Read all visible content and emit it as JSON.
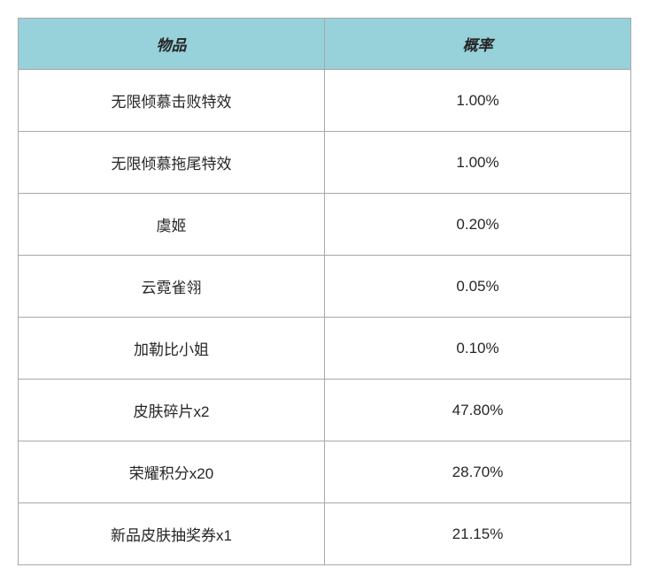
{
  "table": {
    "type": "table",
    "columns": [
      {
        "key": "item",
        "label": "物品",
        "width": "50%",
        "align": "center"
      },
      {
        "key": "rate",
        "label": "概率",
        "width": "50%",
        "align": "center"
      }
    ],
    "rows": [
      {
        "item": "无限倾慕击败特效",
        "rate": "1.00%"
      },
      {
        "item": "无限倾慕拖尾特效",
        "rate": "1.00%"
      },
      {
        "item": "虞姬",
        "rate": "0.20%"
      },
      {
        "item": "云霓雀翎",
        "rate": "0.05%"
      },
      {
        "item": "加勒比小姐",
        "rate": "0.10%"
      },
      {
        "item": "皮肤碎片x2",
        "rate": "47.80%"
      },
      {
        "item": "荣耀积分x20",
        "rate": "28.70%"
      },
      {
        "item": "新品皮肤抽奖券x1",
        "rate": "21.15%"
      }
    ],
    "header_background_color": "#97d1d9",
    "header_text_color": "#262626",
    "header_font_style": "italic",
    "header_font_weight": "bold",
    "header_fontsize": 17,
    "cell_background_color": "#ffffff",
    "cell_text_color": "#262626",
    "cell_fontsize": 17,
    "border_color": "#a8a8a8",
    "row_height_header": 54,
    "row_height_body": 68
  }
}
